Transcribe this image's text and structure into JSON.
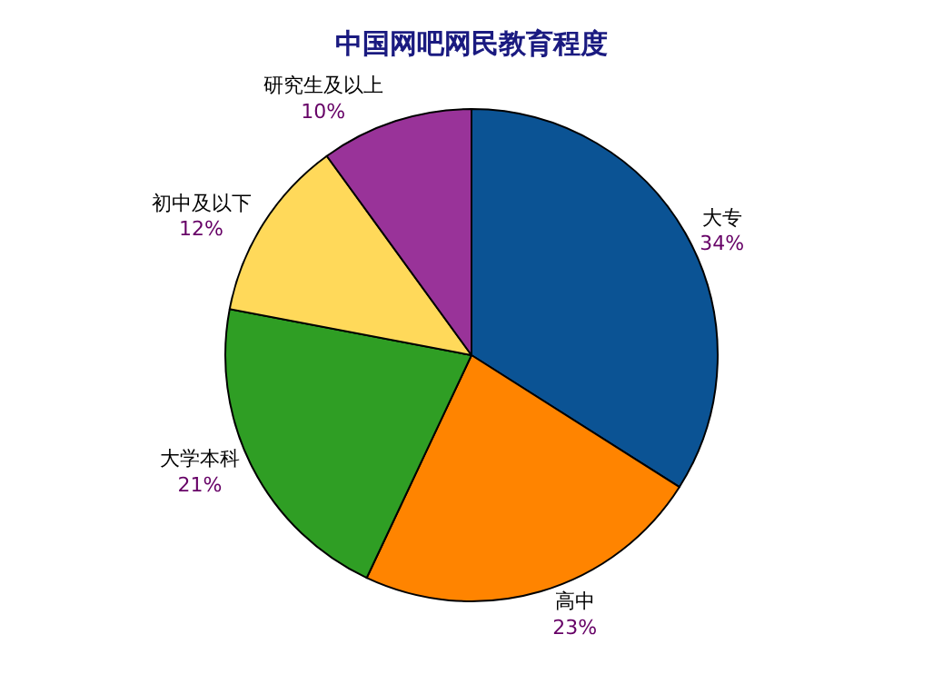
{
  "chart_data": {
    "type": "pie",
    "title": "中国网吧网民教育程度",
    "categories": [
      "大专",
      "高中",
      "大学本科",
      "初中及以下",
      "研究生及以上"
    ],
    "values": [
      34,
      23,
      21,
      12,
      10
    ],
    "value_labels": [
      "34%",
      "23%",
      "21%",
      "12%",
      "10%"
    ],
    "colors": [
      "#0b5394",
      "#ff8400",
      "#2f9e24",
      "#ffd95a",
      "#993399"
    ],
    "legend": false
  }
}
